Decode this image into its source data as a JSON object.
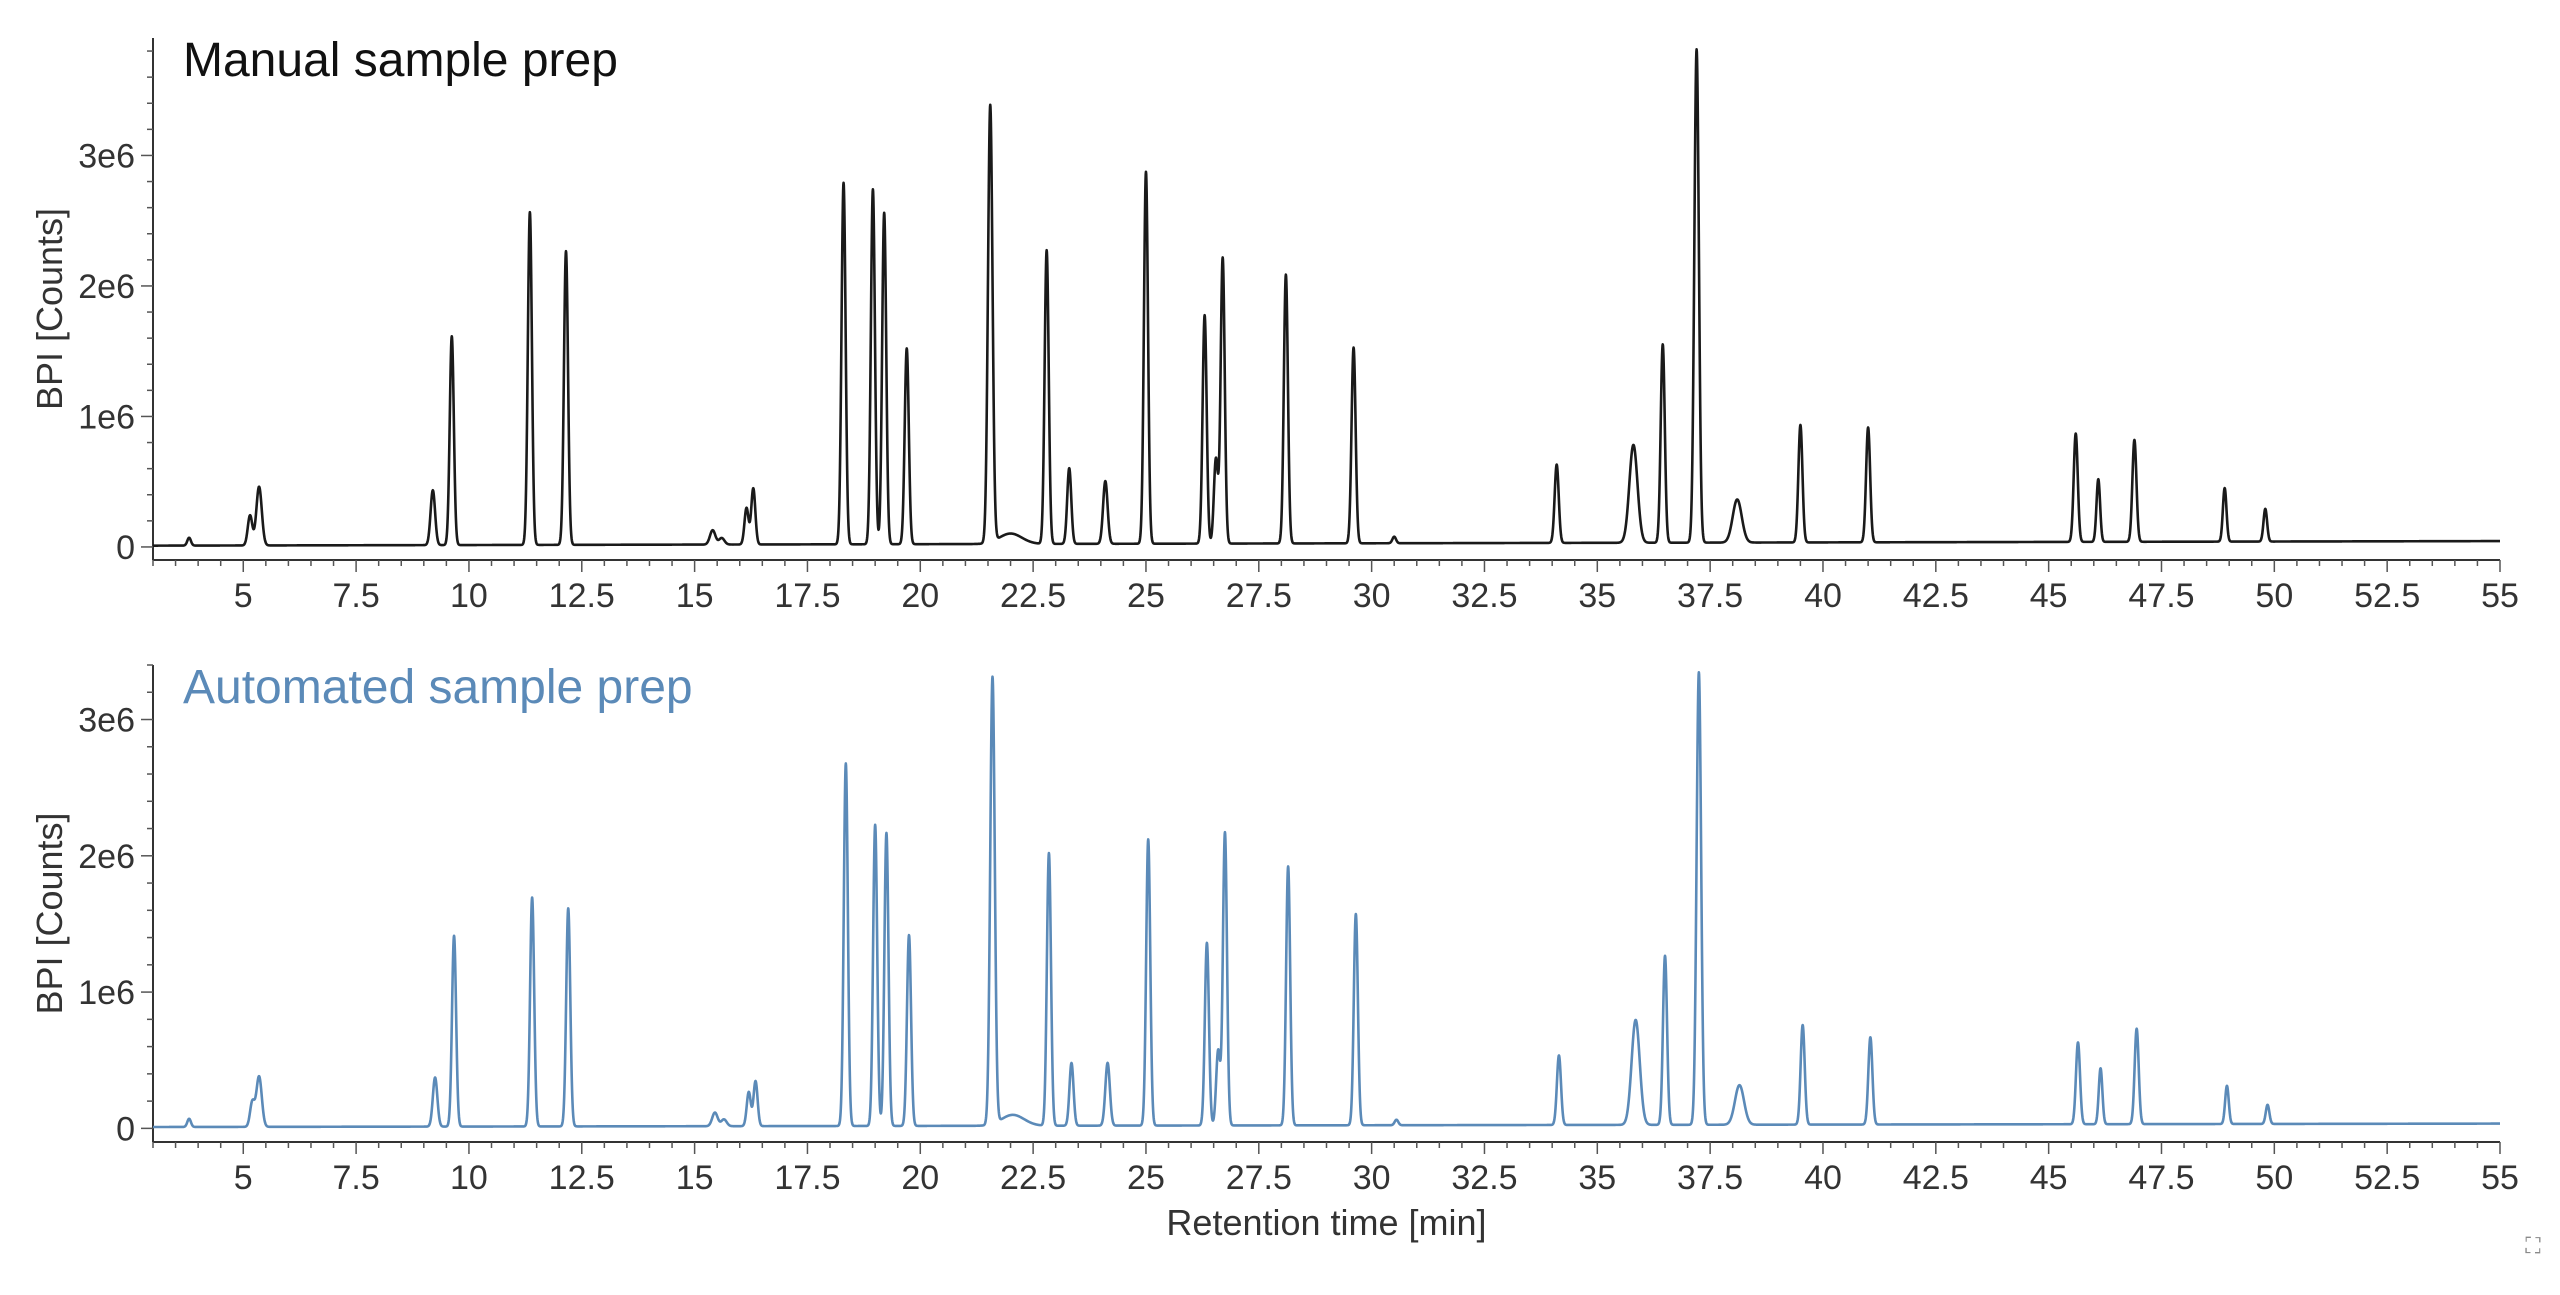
{
  "chart_data": [
    {
      "type": "line",
      "title": "Manual sample prep",
      "xlabel": "",
      "ylabel": "BPI [Counts]",
      "xlim": [
        3,
        55
      ],
      "ylim": [
        -100000,
        3900000
      ],
      "xticks": [
        5,
        7.5,
        10,
        12.5,
        15,
        17.5,
        20,
        22.5,
        25,
        27.5,
        30,
        32.5,
        35,
        37.5,
        40,
        42.5,
        45,
        47.5,
        50,
        52.5,
        55
      ],
      "xtick_labels": [
        "5",
        "7.5",
        "10",
        "12.5",
        "15",
        "17.5",
        "20",
        "22.5",
        "25",
        "27.5",
        "30",
        "32.5",
        "35",
        "37.5",
        "40",
        "42.5",
        "45",
        "47.5",
        "50",
        "52.5",
        "55"
      ],
      "yticks": [
        0,
        1000000,
        2000000,
        3000000
      ],
      "ytick_labels": [
        "0",
        "1e6",
        "2e6",
        "3e6"
      ],
      "color": "#1a1a1a",
      "grid": false,
      "series": [
        {
          "peaks": [
            {
              "rt": 3.8,
              "height": 60000,
              "width": 0.04
            },
            {
              "rt": 5.15,
              "height": 230000,
              "width": 0.05
            },
            {
              "rt": 5.35,
              "height": 450000,
              "width": 0.06
            },
            {
              "rt": 9.2,
              "height": 420000,
              "width": 0.05
            },
            {
              "rt": 9.62,
              "height": 1600000,
              "width": 0.045
            },
            {
              "rt": 11.35,
              "height": 2550000,
              "width": 0.045
            },
            {
              "rt": 12.15,
              "height": 2250000,
              "width": 0.045
            },
            {
              "rt": 15.4,
              "height": 110000,
              "width": 0.06
            },
            {
              "rt": 15.6,
              "height": 50000,
              "width": 0.06
            },
            {
              "rt": 16.15,
              "height": 280000,
              "width": 0.045
            },
            {
              "rt": 16.3,
              "height": 430000,
              "width": 0.045
            },
            {
              "rt": 18.3,
              "height": 2770000,
              "width": 0.045
            },
            {
              "rt": 18.95,
              "height": 2720000,
              "width": 0.045
            },
            {
              "rt": 19.2,
              "height": 2540000,
              "width": 0.045
            },
            {
              "rt": 19.7,
              "height": 1500000,
              "width": 0.045
            },
            {
              "rt": 21.55,
              "height": 3350000,
              "width": 0.05
            },
            {
              "rt": 22.0,
              "height": 80000,
              "width": 0.25
            },
            {
              "rt": 22.8,
              "height": 2250000,
              "width": 0.045
            },
            {
              "rt": 23.3,
              "height": 580000,
              "width": 0.045
            },
            {
              "rt": 24.1,
              "height": 480000,
              "width": 0.05
            },
            {
              "rt": 25.0,
              "height": 2850000,
              "width": 0.045
            },
            {
              "rt": 26.3,
              "height": 1750000,
              "width": 0.045
            },
            {
              "rt": 26.55,
              "height": 650000,
              "width": 0.045
            },
            {
              "rt": 26.7,
              "height": 2190000,
              "width": 0.045
            },
            {
              "rt": 28.1,
              "height": 2060000,
              "width": 0.045
            },
            {
              "rt": 29.6,
              "height": 1500000,
              "width": 0.045
            },
            {
              "rt": 30.5,
              "height": 50000,
              "width": 0.04
            },
            {
              "rt": 34.1,
              "height": 600000,
              "width": 0.045
            },
            {
              "rt": 35.8,
              "height": 750000,
              "width": 0.09
            },
            {
              "rt": 36.45,
              "height": 1520000,
              "width": 0.045
            },
            {
              "rt": 37.2,
              "height": 3780000,
              "width": 0.05
            },
            {
              "rt": 38.1,
              "height": 330000,
              "width": 0.1
            },
            {
              "rt": 39.5,
              "height": 900000,
              "width": 0.045
            },
            {
              "rt": 41.0,
              "height": 880000,
              "width": 0.045
            },
            {
              "rt": 45.6,
              "height": 830000,
              "width": 0.045
            },
            {
              "rt": 46.1,
              "height": 480000,
              "width": 0.04
            },
            {
              "rt": 46.9,
              "height": 780000,
              "width": 0.045
            },
            {
              "rt": 48.9,
              "height": 410000,
              "width": 0.04
            },
            {
              "rt": 49.8,
              "height": 250000,
              "width": 0.04
            }
          ],
          "baseline": [
            {
              "x": 3,
              "y": 10000
            },
            {
              "x": 55,
              "y": 45000
            }
          ]
        }
      ]
    },
    {
      "type": "line",
      "title": "Automated sample prep",
      "xlabel": "Retention time [min]",
      "ylabel": "BPI [Counts]",
      "xlim": [
        3,
        55
      ],
      "ylim": [
        -100000,
        3400000
      ],
      "xticks": [
        5,
        7.5,
        10,
        12.5,
        15,
        17.5,
        20,
        22.5,
        25,
        27.5,
        30,
        32.5,
        35,
        37.5,
        40,
        42.5,
        45,
        47.5,
        50,
        52.5,
        55
      ],
      "xtick_labels": [
        "5",
        "7.5",
        "10",
        "12.5",
        "15",
        "17.5",
        "20",
        "22.5",
        "25",
        "27.5",
        "30",
        "32.5",
        "35",
        "37.5",
        "40",
        "42.5",
        "45",
        "47.5",
        "50",
        "52.5",
        "55"
      ],
      "yticks": [
        0,
        1000000,
        2000000,
        3000000
      ],
      "ytick_labels": [
        "0",
        "1e6",
        "2e6",
        "3e6"
      ],
      "color": "#5b8ab8",
      "grid": false,
      "series": [
        {
          "peaks": [
            {
              "rt": 3.8,
              "height": 60000,
              "width": 0.04
            },
            {
              "rt": 5.2,
              "height": 180000,
              "width": 0.05
            },
            {
              "rt": 5.35,
              "height": 370000,
              "width": 0.06
            },
            {
              "rt": 9.25,
              "height": 360000,
              "width": 0.05
            },
            {
              "rt": 9.67,
              "height": 1400000,
              "width": 0.045
            },
            {
              "rt": 11.4,
              "height": 1680000,
              "width": 0.045
            },
            {
              "rt": 12.2,
              "height": 1600000,
              "width": 0.045
            },
            {
              "rt": 15.45,
              "height": 100000,
              "width": 0.06
            },
            {
              "rt": 15.65,
              "height": 50000,
              "width": 0.06
            },
            {
              "rt": 16.2,
              "height": 250000,
              "width": 0.045
            },
            {
              "rt": 16.35,
              "height": 330000,
              "width": 0.045
            },
            {
              "rt": 18.35,
              "height": 2660000,
              "width": 0.045
            },
            {
              "rt": 19.0,
              "height": 2210000,
              "width": 0.045
            },
            {
              "rt": 19.25,
              "height": 2150000,
              "width": 0.045
            },
            {
              "rt": 19.75,
              "height": 1400000,
              "width": 0.045
            },
            {
              "rt": 21.6,
              "height": 3280000,
              "width": 0.05
            },
            {
              "rt": 22.05,
              "height": 80000,
              "width": 0.25
            },
            {
              "rt": 22.85,
              "height": 2000000,
              "width": 0.045
            },
            {
              "rt": 23.35,
              "height": 460000,
              "width": 0.045
            },
            {
              "rt": 24.15,
              "height": 460000,
              "width": 0.05
            },
            {
              "rt": 25.05,
              "height": 2100000,
              "width": 0.045
            },
            {
              "rt": 26.35,
              "height": 1340000,
              "width": 0.045
            },
            {
              "rt": 26.6,
              "height": 550000,
              "width": 0.045
            },
            {
              "rt": 26.75,
              "height": 2150000,
              "width": 0.045
            },
            {
              "rt": 28.15,
              "height": 1900000,
              "width": 0.045
            },
            {
              "rt": 29.65,
              "height": 1550000,
              "width": 0.045
            },
            {
              "rt": 30.55,
              "height": 40000,
              "width": 0.04
            },
            {
              "rt": 34.15,
              "height": 510000,
              "width": 0.045
            },
            {
              "rt": 35.85,
              "height": 770000,
              "width": 0.09
            },
            {
              "rt": 36.5,
              "height": 1240000,
              "width": 0.045
            },
            {
              "rt": 37.25,
              "height": 3320000,
              "width": 0.05
            },
            {
              "rt": 38.15,
              "height": 290000,
              "width": 0.1
            },
            {
              "rt": 39.55,
              "height": 730000,
              "width": 0.045
            },
            {
              "rt": 41.05,
              "height": 640000,
              "width": 0.045
            },
            {
              "rt": 45.65,
              "height": 600000,
              "width": 0.045
            },
            {
              "rt": 46.15,
              "height": 410000,
              "width": 0.04
            },
            {
              "rt": 46.95,
              "height": 700000,
              "width": 0.045
            },
            {
              "rt": 48.95,
              "height": 280000,
              "width": 0.04
            },
            {
              "rt": 49.85,
              "height": 140000,
              "width": 0.04
            }
          ],
          "baseline": [
            {
              "x": 3,
              "y": 10000
            },
            {
              "x": 55,
              "y": 35000
            }
          ]
        }
      ]
    }
  ],
  "ui": {
    "expand_icon": "expand-icon"
  }
}
